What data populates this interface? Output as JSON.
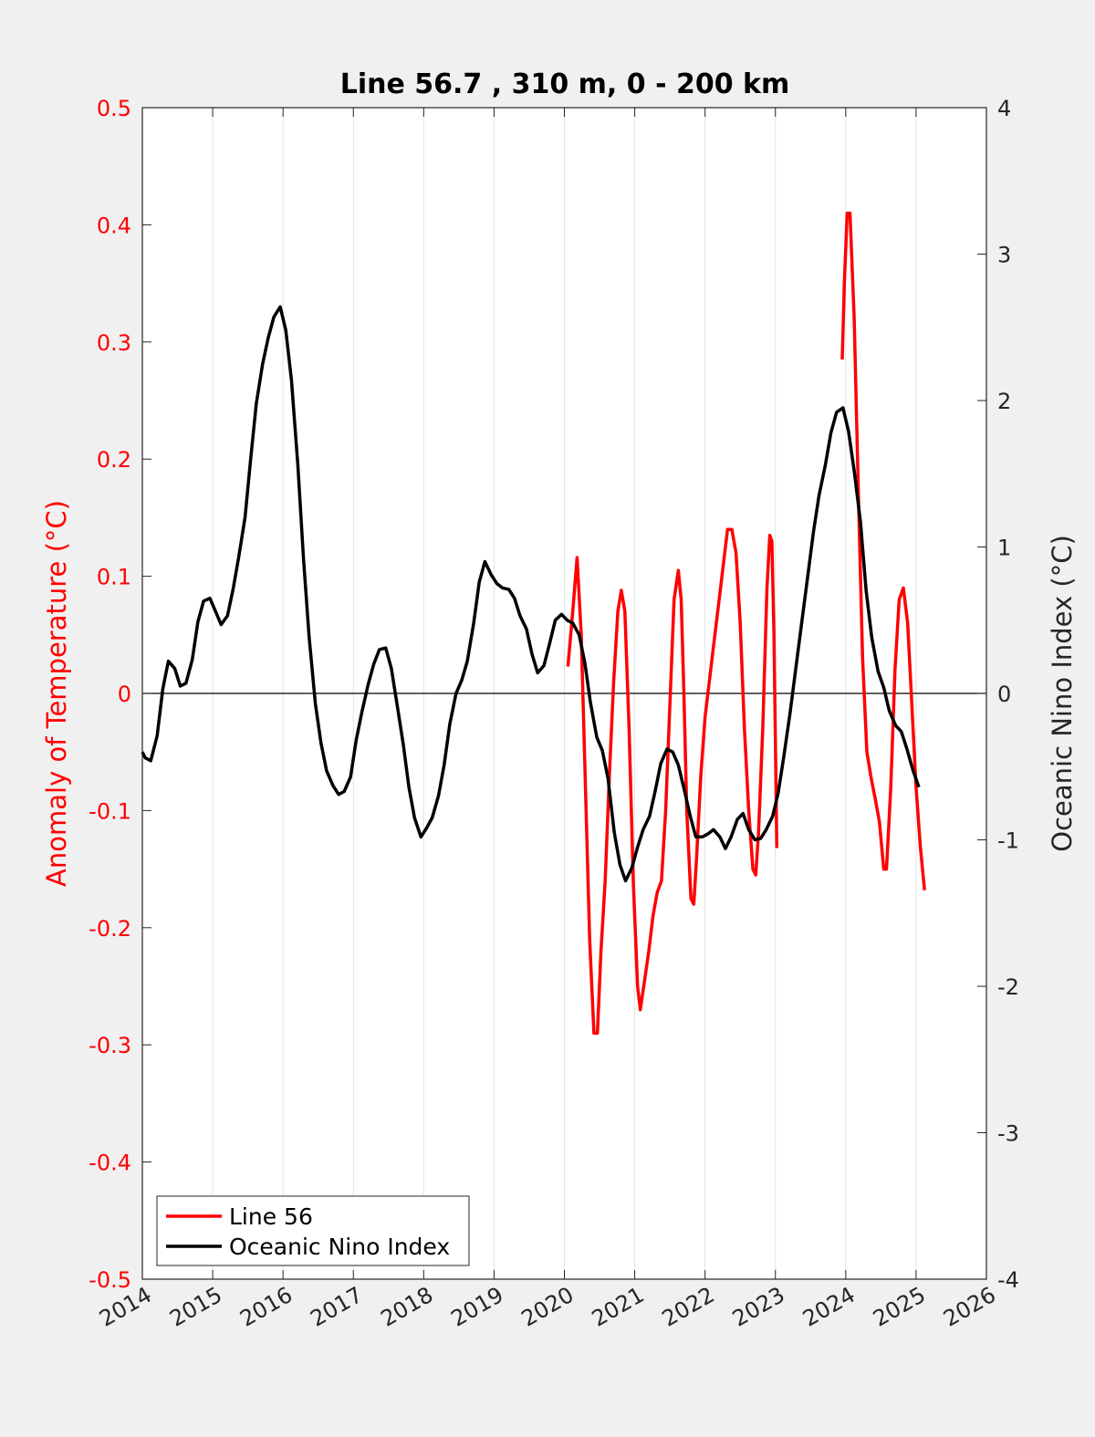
{
  "chart_data": {
    "type": "line",
    "title": "Line 56.7 , 310 m, 0 - 200 km",
    "ylabel_left": "Anomaly of Temperature (°C)",
    "ylabel_right": "Oceanic Nino Index (°C)",
    "xlim": [
      2014,
      2026
    ],
    "ylim_left": [
      -0.5,
      0.5
    ],
    "ylim_right": [
      -4,
      4
    ],
    "x_ticks": [
      "2014",
      "2015",
      "2016",
      "2017",
      "2018",
      "2019",
      "2020",
      "2021",
      "2022",
      "2023",
      "2024",
      "2025",
      "2026"
    ],
    "y_ticks_left": [
      "0.5",
      "0.4",
      "0.3",
      "0.2",
      "0.1",
      "0",
      "-0.1",
      "-0.2",
      "-0.3",
      "-0.4",
      "-0.5"
    ],
    "y_ticks_right": [
      "4",
      "3",
      "2",
      "1",
      "0",
      "-1",
      "-2",
      "-3",
      "-4"
    ],
    "grid": "vertical",
    "zero_line": true,
    "legend_position": "bottom-left",
    "series": [
      {
        "name": "Line 56",
        "axis": "left",
        "color": "#ff0000",
        "segments": [
          [
            [
              2020.05,
              0.023
            ],
            [
              2020.12,
              0.07
            ],
            [
              2020.18,
              0.116
            ],
            [
              2020.24,
              0.05
            ],
            [
              2020.3,
              -0.08
            ],
            [
              2020.36,
              -0.21
            ],
            [
              2020.42,
              -0.29
            ],
            [
              2020.47,
              -0.29
            ],
            [
              2020.52,
              -0.22
            ],
            [
              2020.58,
              -0.16
            ],
            [
              2020.64,
              -0.07
            ],
            [
              2020.7,
              0.01
            ],
            [
              2020.76,
              0.07
            ],
            [
              2020.81,
              0.088
            ],
            [
              2020.86,
              0.07
            ],
            [
              2020.92,
              -0.03
            ],
            [
              2020.98,
              -0.16
            ],
            [
              2021.04,
              -0.25
            ],
            [
              2021.08,
              -0.27
            ],
            [
              2021.14,
              -0.245
            ],
            [
              2021.2,
              -0.22
            ],
            [
              2021.26,
              -0.19
            ],
            [
              2021.32,
              -0.17
            ],
            [
              2021.38,
              -0.16
            ],
            [
              2021.44,
              -0.1
            ],
            [
              2021.5,
              -0.01
            ],
            [
              2021.56,
              0.08
            ],
            [
              2021.62,
              0.105
            ],
            [
              2021.66,
              0.08
            ],
            [
              2021.7,
              0.0
            ],
            [
              2021.74,
              -0.1
            ],
            [
              2021.8,
              -0.175
            ],
            [
              2021.84,
              -0.18
            ],
            [
              2021.88,
              -0.14
            ],
            [
              2021.94,
              -0.07
            ],
            [
              2022.0,
              -0.02
            ],
            [
              2022.06,
              0.01
            ],
            [
              2022.12,
              0.04
            ],
            [
              2022.2,
              0.08
            ],
            [
              2022.26,
              0.11
            ],
            [
              2022.32,
              0.14
            ],
            [
              2022.38,
              0.14
            ],
            [
              2022.44,
              0.12
            ],
            [
              2022.5,
              0.06
            ],
            [
              2022.56,
              -0.03
            ],
            [
              2022.62,
              -0.1
            ],
            [
              2022.68,
              -0.15
            ],
            [
              2022.72,
              -0.155
            ],
            [
              2022.76,
              -0.12
            ],
            [
              2022.82,
              -0.03
            ],
            [
              2022.88,
              0.09
            ],
            [
              2022.92,
              0.135
            ],
            [
              2022.95,
              0.13
            ],
            [
              2022.98,
              0.05
            ],
            [
              2023.02,
              -0.132
            ]
          ],
          [
            [
              2023.95,
              0.285
            ],
            [
              2023.98,
              0.35
            ],
            [
              2024.02,
              0.41
            ],
            [
              2024.06,
              0.41
            ],
            [
              2024.12,
              0.32
            ],
            [
              2024.18,
              0.17
            ],
            [
              2024.24,
              0.03
            ],
            [
              2024.3,
              -0.05
            ],
            [
              2024.36,
              -0.072
            ],
            [
              2024.42,
              -0.09
            ],
            [
              2024.48,
              -0.11
            ],
            [
              2024.54,
              -0.15
            ],
            [
              2024.58,
              -0.15
            ],
            [
              2024.64,
              -0.08
            ],
            [
              2024.7,
              0.02
            ],
            [
              2024.76,
              0.08
            ],
            [
              2024.82,
              0.09
            ],
            [
              2024.88,
              0.06
            ],
            [
              2024.94,
              -0.01
            ],
            [
              2025.0,
              -0.08
            ],
            [
              2025.06,
              -0.13
            ],
            [
              2025.12,
              -0.168
            ]
          ]
        ]
      },
      {
        "name": "Oceanic Nino Index",
        "axis": "right",
        "color": "#000000",
        "points": [
          [
            2014.0,
            -0.4
          ],
          [
            2014.04,
            -0.44
          ],
          [
            2014.12,
            -0.46
          ],
          [
            2014.21,
            -0.29
          ],
          [
            2014.29,
            0.03
          ],
          [
            2014.37,
            0.22
          ],
          [
            2014.46,
            0.17
          ],
          [
            2014.54,
            0.05
          ],
          [
            2014.62,
            0.07
          ],
          [
            2014.71,
            0.23
          ],
          [
            2014.79,
            0.49
          ],
          [
            2014.87,
            0.63
          ],
          [
            2014.96,
            0.65
          ],
          [
            2015.04,
            0.56
          ],
          [
            2015.12,
            0.47
          ],
          [
            2015.21,
            0.53
          ],
          [
            2015.29,
            0.71
          ],
          [
            2015.37,
            0.93
          ],
          [
            2015.46,
            1.2
          ],
          [
            2015.54,
            1.6
          ],
          [
            2015.62,
            1.98
          ],
          [
            2015.71,
            2.25
          ],
          [
            2015.79,
            2.43
          ],
          [
            2015.87,
            2.57
          ],
          [
            2015.96,
            2.64
          ],
          [
            2016.04,
            2.48
          ],
          [
            2016.12,
            2.14
          ],
          [
            2016.21,
            1.56
          ],
          [
            2016.29,
            0.93
          ],
          [
            2016.37,
            0.39
          ],
          [
            2016.46,
            -0.07
          ],
          [
            2016.54,
            -0.34
          ],
          [
            2016.62,
            -0.53
          ],
          [
            2016.71,
            -0.63
          ],
          [
            2016.79,
            -0.69
          ],
          [
            2016.87,
            -0.67
          ],
          [
            2016.96,
            -0.57
          ],
          [
            2017.04,
            -0.32
          ],
          [
            2017.12,
            -0.13
          ],
          [
            2017.21,
            0.06
          ],
          [
            2017.29,
            0.2
          ],
          [
            2017.37,
            0.3
          ],
          [
            2017.46,
            0.31
          ],
          [
            2017.54,
            0.17
          ],
          [
            2017.62,
            -0.07
          ],
          [
            2017.71,
            -0.35
          ],
          [
            2017.79,
            -0.64
          ],
          [
            2017.87,
            -0.85
          ],
          [
            2017.96,
            -0.98
          ],
          [
            2018.04,
            -0.92
          ],
          [
            2018.12,
            -0.85
          ],
          [
            2018.21,
            -0.7
          ],
          [
            2018.29,
            -0.49
          ],
          [
            2018.37,
            -0.21
          ],
          [
            2018.46,
            0.0
          ],
          [
            2018.54,
            0.09
          ],
          [
            2018.62,
            0.22
          ],
          [
            2018.71,
            0.48
          ],
          [
            2018.79,
            0.76
          ],
          [
            2018.87,
            0.9
          ],
          [
            2018.96,
            0.81
          ],
          [
            2019.04,
            0.75
          ],
          [
            2019.12,
            0.72
          ],
          [
            2019.21,
            0.71
          ],
          [
            2019.29,
            0.65
          ],
          [
            2019.37,
            0.53
          ],
          [
            2019.46,
            0.44
          ],
          [
            2019.54,
            0.27
          ],
          [
            2019.62,
            0.14
          ],
          [
            2019.71,
            0.19
          ],
          [
            2019.79,
            0.34
          ],
          [
            2019.87,
            0.5
          ],
          [
            2019.96,
            0.54
          ],
          [
            2020.04,
            0.5
          ],
          [
            2020.12,
            0.48
          ],
          [
            2020.21,
            0.4
          ],
          [
            2020.29,
            0.21
          ],
          [
            2020.37,
            -0.06
          ],
          [
            2020.46,
            -0.3
          ],
          [
            2020.54,
            -0.39
          ],
          [
            2020.62,
            -0.58
          ],
          [
            2020.71,
            -0.95
          ],
          [
            2020.79,
            -1.17
          ],
          [
            2020.87,
            -1.28
          ],
          [
            2020.96,
            -1.19
          ],
          [
            2021.04,
            -1.05
          ],
          [
            2021.12,
            -0.93
          ],
          [
            2021.21,
            -0.84
          ],
          [
            2021.29,
            -0.67
          ],
          [
            2021.37,
            -0.48
          ],
          [
            2021.46,
            -0.38
          ],
          [
            2021.54,
            -0.4
          ],
          [
            2021.62,
            -0.49
          ],
          [
            2021.71,
            -0.67
          ],
          [
            2021.79,
            -0.84
          ],
          [
            2021.87,
            -0.98
          ],
          [
            2021.96,
            -0.98
          ],
          [
            2022.04,
            -0.96
          ],
          [
            2022.12,
            -0.93
          ],
          [
            2022.21,
            -0.98
          ],
          [
            2022.29,
            -1.06
          ],
          [
            2022.37,
            -0.98
          ],
          [
            2022.46,
            -0.86
          ],
          [
            2022.54,
            -0.82
          ],
          [
            2022.62,
            -0.93
          ],
          [
            2022.71,
            -1.0
          ],
          [
            2022.79,
            -0.99
          ],
          [
            2022.87,
            -0.93
          ],
          [
            2022.96,
            -0.84
          ],
          [
            2023.04,
            -0.68
          ],
          [
            2023.12,
            -0.43
          ],
          [
            2023.21,
            -0.13
          ],
          [
            2023.29,
            0.17
          ],
          [
            2023.37,
            0.47
          ],
          [
            2023.46,
            0.8
          ],
          [
            2023.54,
            1.1
          ],
          [
            2023.62,
            1.35
          ],
          [
            2023.71,
            1.56
          ],
          [
            2023.79,
            1.78
          ],
          [
            2023.87,
            1.92
          ],
          [
            2023.96,
            1.95
          ],
          [
            2024.04,
            1.79
          ],
          [
            2024.12,
            1.52
          ],
          [
            2024.21,
            1.17
          ],
          [
            2024.29,
            0.7
          ],
          [
            2024.37,
            0.38
          ],
          [
            2024.46,
            0.15
          ],
          [
            2024.54,
            0.04
          ],
          [
            2024.62,
            -0.12
          ],
          [
            2024.71,
            -0.22
          ],
          [
            2024.79,
            -0.26
          ],
          [
            2024.87,
            -0.38
          ],
          [
            2024.96,
            -0.53
          ],
          [
            2025.04,
            -0.64
          ]
        ]
      }
    ]
  }
}
